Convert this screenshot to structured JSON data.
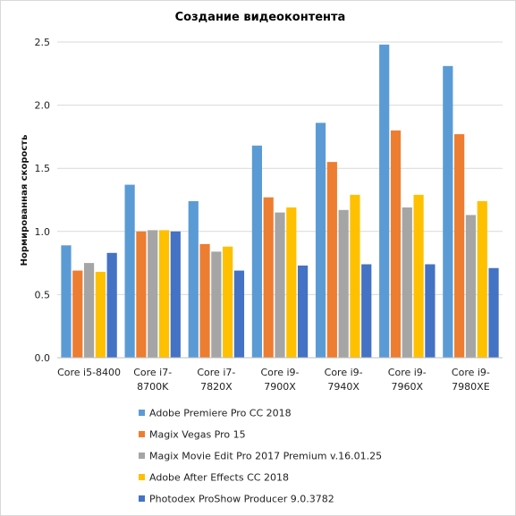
{
  "chart_data": {
    "type": "bar",
    "title": "Создание видеоконтента",
    "ylabel": "Нормированная  скорость",
    "xlabel": "",
    "ylim": [
      0,
      2.5
    ],
    "yticks": [
      "0.0",
      "0.5",
      "1.0",
      "1.5",
      "2.0",
      "2.5"
    ],
    "grid": "horizontal",
    "legend_position": "bottom",
    "categories": [
      [
        "Core i5-8400"
      ],
      [
        "Core i7-",
        "8700K"
      ],
      [
        "Core i7-",
        "7820X"
      ],
      [
        "Core i9-",
        "7900X"
      ],
      [
        "Core i9-",
        "7940X"
      ],
      [
        "Core i9-",
        "7960X"
      ],
      [
        "Core i9-",
        "7980XE"
      ]
    ],
    "series": [
      {
        "name": "Adobe Premiere Pro CC 2018",
        "color": "#5b9bd5",
        "values": [
          0.89,
          1.37,
          1.24,
          1.68,
          1.86,
          2.48,
          2.31
        ]
      },
      {
        "name": "Magix Vegas Pro 15",
        "color": "#ed7d31",
        "values": [
          0.69,
          1.0,
          0.9,
          1.27,
          1.55,
          1.8,
          1.77
        ]
      },
      {
        "name": "Magix Movie Edit Pro 2017 Premium v.16.01.25",
        "color": "#a5a5a5",
        "values": [
          0.75,
          1.01,
          0.84,
          1.15,
          1.17,
          1.19,
          1.13
        ]
      },
      {
        "name": "Adobe After Effects CC 2018",
        "color": "#ffc000",
        "values": [
          0.68,
          1.01,
          0.88,
          1.19,
          1.29,
          1.29,
          1.24
        ]
      },
      {
        "name": "Photodex ProShow Producer 9.0.3782",
        "color": "#4472c4",
        "values": [
          0.83,
          1.0,
          0.69,
          0.73,
          0.74,
          0.74,
          0.71
        ]
      }
    ]
  }
}
